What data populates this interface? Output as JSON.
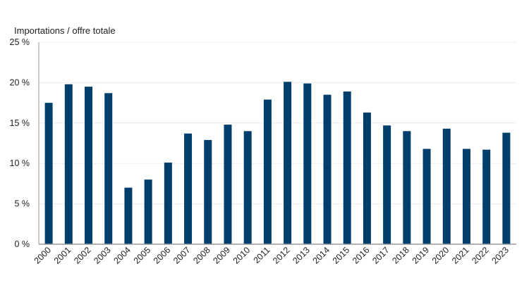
{
  "chart_data": {
    "type": "bar",
    "title": "Importations / offre totale",
    "xlabel": "",
    "ylabel": "",
    "ylim": [
      0,
      25
    ],
    "yticks": [
      0,
      5,
      10,
      15,
      20,
      25
    ],
    "ytick_labels": [
      "0 %",
      "5 %",
      "10 %",
      "15 %",
      "20 %",
      "25 %"
    ],
    "grid": true,
    "bar_color": "#003f6b",
    "categories": [
      "2000",
      "2001",
      "2002",
      "2003",
      "2004",
      "2005",
      "2006",
      "2007",
      "2008",
      "2009",
      "2010",
      "2011",
      "2012",
      "2013",
      "2014",
      "2015",
      "2016",
      "2017",
      "2018",
      "2019",
      "2020",
      "2021",
      "2022",
      "2023"
    ],
    "values": [
      17.5,
      19.8,
      19.5,
      18.7,
      7.0,
      8.0,
      10.1,
      13.7,
      12.9,
      14.8,
      14.0,
      17.9,
      20.1,
      19.9,
      18.5,
      18.9,
      16.3,
      14.7,
      14.0,
      11.8,
      14.3,
      11.8,
      11.7,
      13.8
    ]
  }
}
